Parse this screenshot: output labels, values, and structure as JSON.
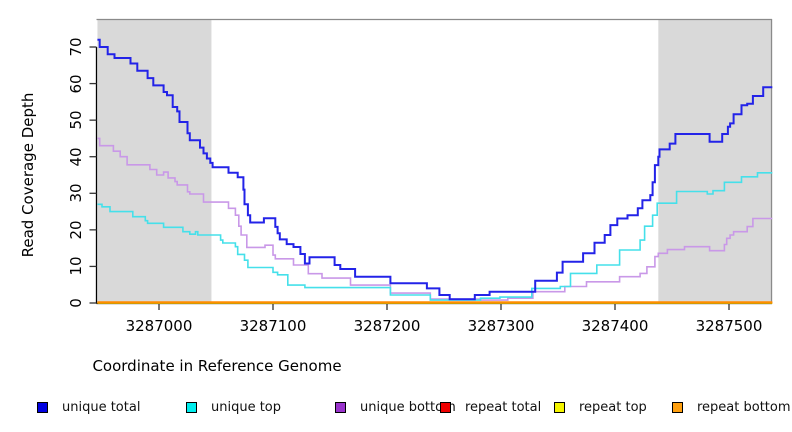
{
  "chart_data": {
    "type": "line",
    "subtype": "step-after-coverage-plot",
    "title": "",
    "xlabel": "Coordinate in Reference Genome",
    "ylabel": "Read Coverage Depth",
    "xlim": [
      3286946,
      3287538
    ],
    "ylim": [
      0,
      77
    ],
    "x_ticks": [
      3287000,
      3287100,
      3287200,
      3287300,
      3287400,
      3287500
    ],
    "y_ticks": [
      0,
      10,
      20,
      30,
      40,
      50,
      60,
      70
    ],
    "grid": false,
    "legend_position": "bottom-horizontal",
    "shaded_region_color": "#d9d9d9",
    "border_color": "#8a8a8a",
    "shaded_regions": [
      {
        "from": 3286946,
        "to": 3287046
      },
      {
        "from": 3287438,
        "to": 3287538
      }
    ],
    "series": [
      {
        "name": "repeat total",
        "line_color": "#e00000",
        "swatch_color": "#ee0000",
        "width": 1.6,
        "points": [
          [
            3286946,
            0
          ]
        ]
      },
      {
        "name": "repeat top",
        "line_color": "#f0f000",
        "swatch_color": "#f5f500",
        "width": 1.6,
        "points": [
          [
            3286946,
            0
          ]
        ]
      },
      {
        "name": "repeat bottom",
        "line_color": "#ff8c00",
        "swatch_color": "#ffa010",
        "width": 2,
        "points": [
          [
            3286946,
            0.2
          ]
        ]
      },
      {
        "name": "unique bottom",
        "line_color": "#c998e8",
        "swatch_color": "#9933cc",
        "width": 1.6,
        "points": [
          [
            3286946,
            45
          ],
          [
            3286948,
            43
          ],
          [
            3286960,
            41.5
          ],
          [
            3286966,
            40
          ],
          [
            3286972,
            37.8
          ],
          [
            3286992,
            36.5
          ],
          [
            3286998,
            35
          ],
          [
            3287004,
            35.8
          ],
          [
            3287008,
            34.2
          ],
          [
            3287014,
            33.2
          ],
          [
            3287016,
            32.3
          ],
          [
            3287025,
            30.4
          ],
          [
            3287027,
            29.8
          ],
          [
            3287039,
            27.6
          ],
          [
            3287061,
            25.9
          ],
          [
            3287067,
            24
          ],
          [
            3287070,
            21
          ],
          [
            3287072,
            18.6
          ],
          [
            3287077,
            15.2
          ],
          [
            3287093,
            15.8
          ],
          [
            3287100,
            13.1
          ],
          [
            3287102,
            12.1
          ],
          [
            3287118,
            10.4
          ],
          [
            3287131,
            8
          ],
          [
            3287143,
            6.8
          ],
          [
            3287168,
            4.9
          ],
          [
            3287203,
            2.7
          ],
          [
            3287238,
            1.1
          ],
          [
            3287282,
            0.8
          ],
          [
            3287306,
            1.3
          ],
          [
            3287328,
            3.1
          ],
          [
            3287356,
            4.5
          ],
          [
            3287375,
            5.8
          ],
          [
            3287404,
            7.2
          ],
          [
            3287422,
            8.1
          ],
          [
            3287428,
            9.9
          ],
          [
            3287435,
            12.7
          ],
          [
            3287438,
            13.6
          ],
          [
            3287446,
            14.6
          ],
          [
            3287461,
            15.4
          ],
          [
            3287483,
            14.3
          ],
          [
            3287496,
            16
          ],
          [
            3287498,
            17.7
          ],
          [
            3287501,
            18.6
          ],
          [
            3287504,
            19.5
          ],
          [
            3287516,
            20.9
          ],
          [
            3287521,
            23.1
          ]
        ]
      },
      {
        "name": "unique top",
        "line_color": "#45e0ea",
        "swatch_color": "#00eeee",
        "width": 1.6,
        "points": [
          [
            3286946,
            27
          ],
          [
            3286950,
            26.3
          ],
          [
            3286957,
            25
          ],
          [
            3286977,
            23.6
          ],
          [
            3286988,
            22.5
          ],
          [
            3286990,
            21.8
          ],
          [
            3287004,
            20.7
          ],
          [
            3287021,
            19.5
          ],
          [
            3287027,
            18.8
          ],
          [
            3287032,
            19.5
          ],
          [
            3287034,
            18.6
          ],
          [
            3287054,
            17.2
          ],
          [
            3287056,
            16.4
          ],
          [
            3287067,
            15.4
          ],
          [
            3287069,
            13.3
          ],
          [
            3287075,
            11.7
          ],
          [
            3287078,
            9.7
          ],
          [
            3287100,
            8.4
          ],
          [
            3287104,
            7.7
          ],
          [
            3287113,
            4.9
          ],
          [
            3287128,
            4.2
          ],
          [
            3287203,
            2.2
          ],
          [
            3287238,
            0.8
          ],
          [
            3287282,
            1.3
          ],
          [
            3287299,
            1.6
          ],
          [
            3287327,
            4
          ],
          [
            3287352,
            4.5
          ],
          [
            3287361,
            8.1
          ],
          [
            3287384,
            10.4
          ],
          [
            3287404,
            14.5
          ],
          [
            3287422,
            17.2
          ],
          [
            3287426,
            21
          ],
          [
            3287433,
            24
          ],
          [
            3287437,
            27.3
          ],
          [
            3287454,
            30.5
          ],
          [
            3287481,
            29.8
          ],
          [
            3287486,
            30.7
          ],
          [
            3287496,
            33
          ],
          [
            3287511,
            34.5
          ],
          [
            3287525,
            35.6
          ]
        ]
      },
      {
        "name": "unique total",
        "line_color": "#2323e8",
        "swatch_color": "#0000e0",
        "width": 2,
        "points": [
          [
            3286946,
            72
          ],
          [
            3286948,
            70
          ],
          [
            3286955,
            68
          ],
          [
            3286961,
            67
          ],
          [
            3286975,
            65.5
          ],
          [
            3286981,
            63.5
          ],
          [
            3286990,
            61.5
          ],
          [
            3286995,
            59.5
          ],
          [
            3287004,
            57.7
          ],
          [
            3287007,
            56.8
          ],
          [
            3287012,
            53.6
          ],
          [
            3287016,
            52.4
          ],
          [
            3287018,
            49.5
          ],
          [
            3287025,
            46.4
          ],
          [
            3287027,
            44.5
          ],
          [
            3287036,
            42.5
          ],
          [
            3287039,
            40.9
          ],
          [
            3287042,
            39.5
          ],
          [
            3287045,
            38.3
          ],
          [
            3287047,
            37.1
          ],
          [
            3287061,
            35.6
          ],
          [
            3287069,
            34.4
          ],
          [
            3287074,
            31
          ],
          [
            3287075,
            27
          ],
          [
            3287078,
            24
          ],
          [
            3287080,
            22
          ],
          [
            3287092,
            23.2
          ],
          [
            3287102,
            20.8
          ],
          [
            3287104,
            19.1
          ],
          [
            3287106,
            17.4
          ],
          [
            3287112,
            16.1
          ],
          [
            3287118,
            15.3
          ],
          [
            3287124,
            13.4
          ],
          [
            3287128,
            10.8
          ],
          [
            3287132,
            12.5
          ],
          [
            3287154,
            10.4
          ],
          [
            3287159,
            9.3
          ],
          [
            3287172,
            7.2
          ],
          [
            3287203,
            5.4
          ],
          [
            3287235,
            4
          ],
          [
            3287246,
            2.2
          ],
          [
            3287255,
            1
          ],
          [
            3287277,
            2.2
          ],
          [
            3287290,
            3.1
          ],
          [
            3287330,
            6.1
          ],
          [
            3287349,
            8.3
          ],
          [
            3287354,
            11.3
          ],
          [
            3287372,
            13.6
          ],
          [
            3287382,
            16.5
          ],
          [
            3287391,
            18.6
          ],
          [
            3287396,
            21.3
          ],
          [
            3287402,
            23.1
          ],
          [
            3287411,
            24
          ],
          [
            3287420,
            25.9
          ],
          [
            3287424,
            28.1
          ],
          [
            3287431,
            29.5
          ],
          [
            3287433,
            33
          ],
          [
            3287435,
            37.7
          ],
          [
            3287438,
            40
          ],
          [
            3287439,
            42
          ],
          [
            3287448,
            43.6
          ],
          [
            3287453,
            46.2
          ],
          [
            3287483,
            44.1
          ],
          [
            3287494,
            46.2
          ],
          [
            3287499,
            48.2
          ],
          [
            3287501,
            49.1
          ],
          [
            3287504,
            51.6
          ],
          [
            3287511,
            54.1
          ],
          [
            3287516,
            54.5
          ],
          [
            3287521,
            56.6
          ],
          [
            3287530,
            59
          ]
        ]
      }
    ],
    "legend": [
      {
        "label": "unique total",
        "swatch_color": "#0000e0"
      },
      {
        "label": "unique top",
        "swatch_color": "#00eeee"
      },
      {
        "label": "unique bottom",
        "swatch_color": "#9933cc"
      },
      {
        "label": "repeat total",
        "swatch_color": "#ee0000"
      },
      {
        "label": "repeat top",
        "swatch_color": "#f5f500"
      },
      {
        "label": "repeat bottom",
        "swatch_color": "#ffa010"
      }
    ]
  }
}
